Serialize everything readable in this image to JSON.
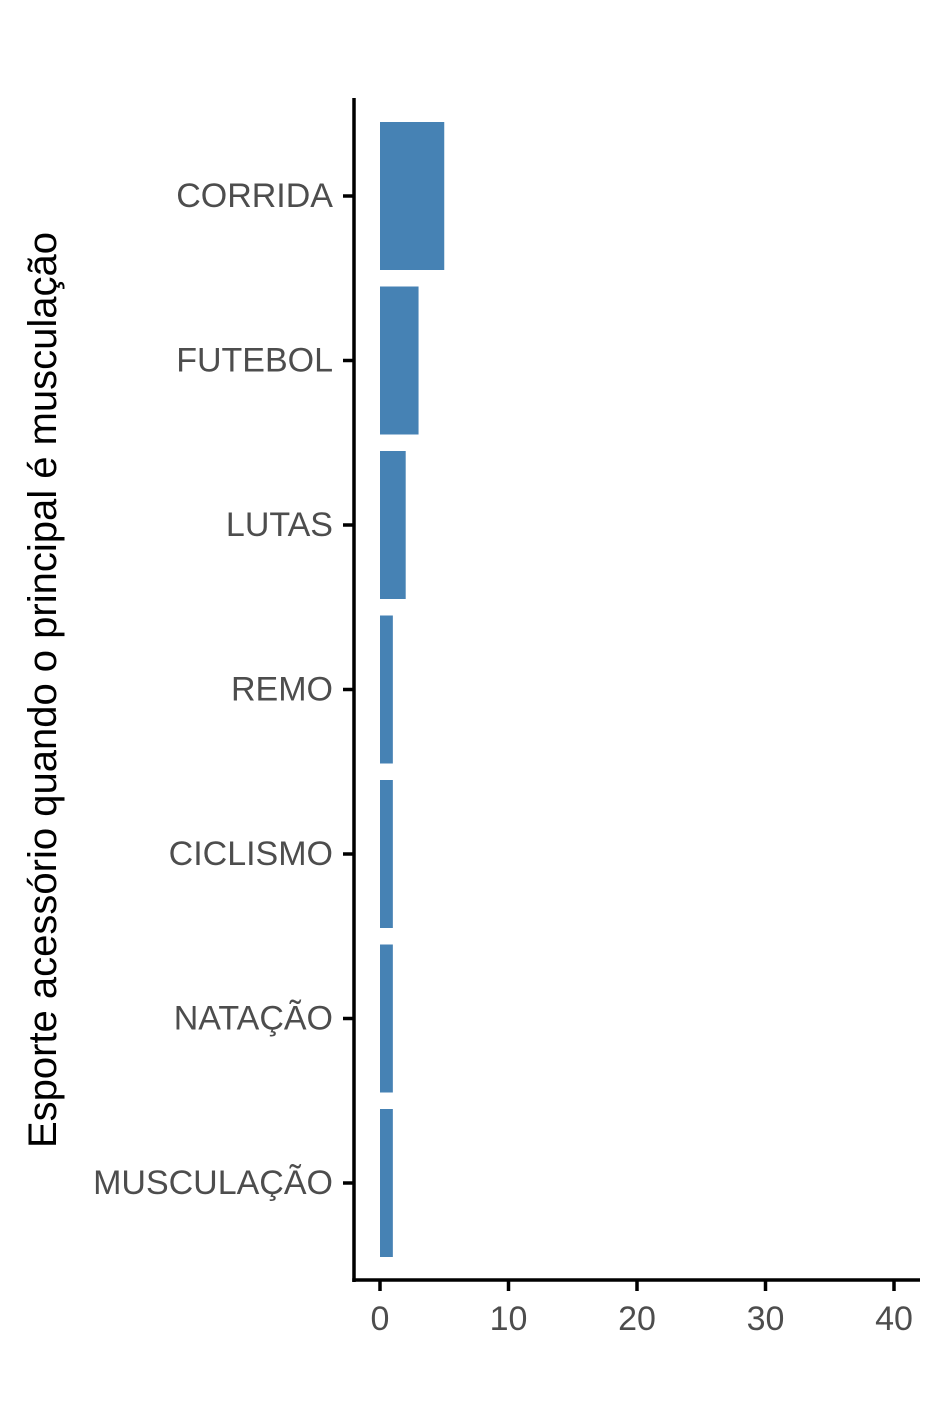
{
  "chart_data": {
    "type": "bar",
    "orientation": "horizontal",
    "categories": [
      "CORRIDA",
      "FUTEBOL",
      "LUTAS",
      "REMO",
      "CICLISMO",
      "NATAÇÃO",
      "MUSCULAÇÃO"
    ],
    "values": [
      5,
      3,
      2,
      1,
      1,
      1,
      1
    ],
    "xlabel": "",
    "ylabel": "Esporte acessório quando o principal é musculação",
    "xlim": [
      0,
      40
    ],
    "xticks": [
      0,
      10,
      20,
      30,
      40
    ],
    "xtick_labels": [
      "0",
      "10",
      "20",
      "30",
      "40"
    ],
    "grid": false,
    "legend": "none",
    "bar_color": "#4682B4"
  }
}
